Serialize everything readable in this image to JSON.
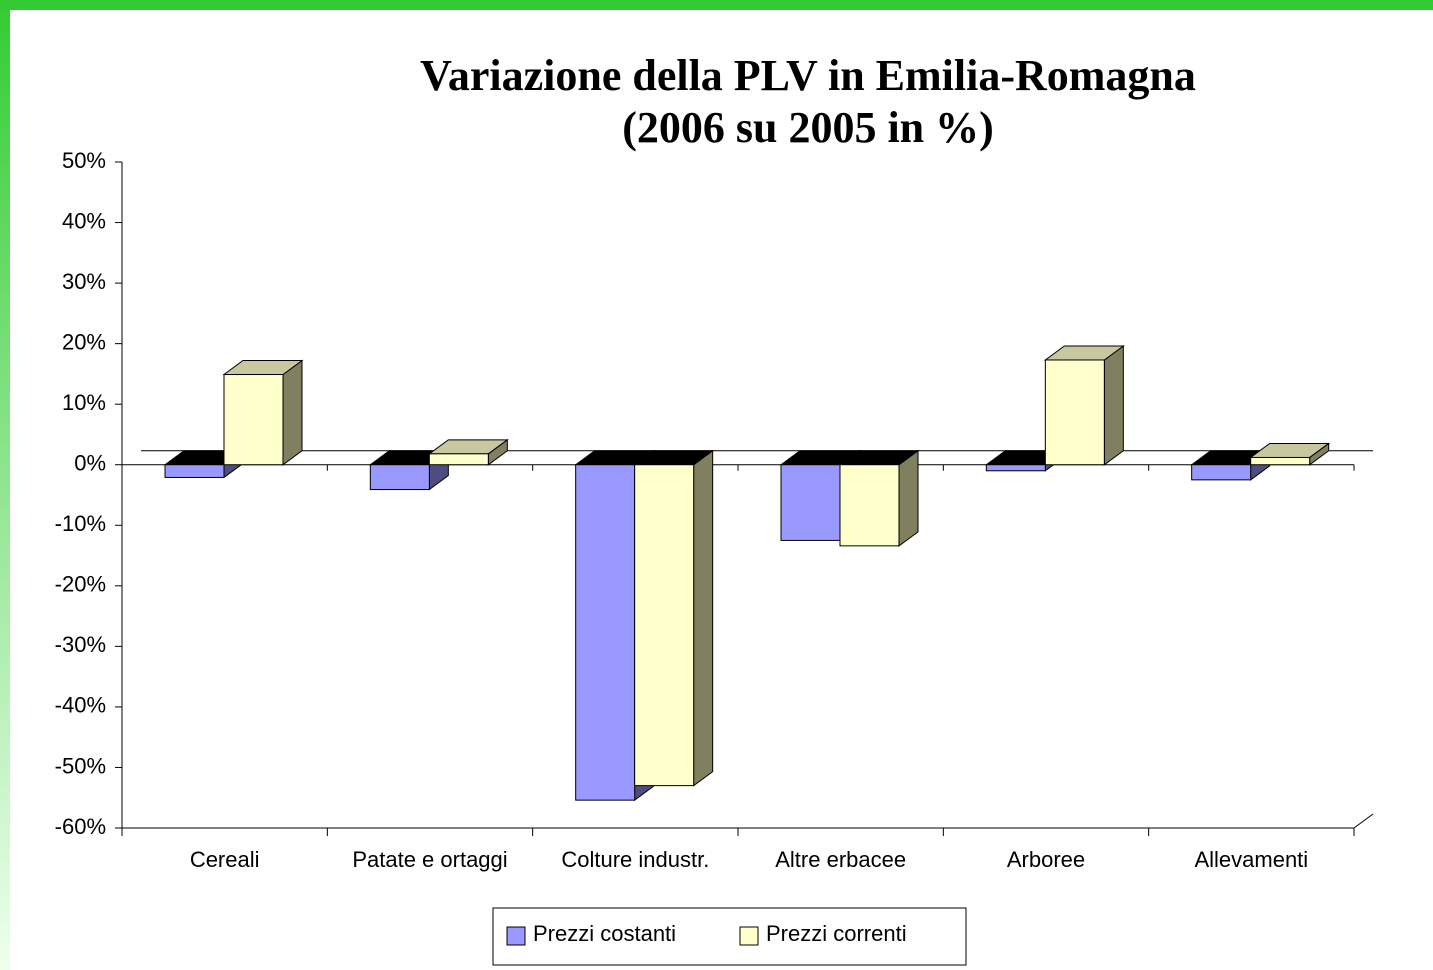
{
  "chart_data": {
    "type": "bar3d",
    "title": "Variazione della PLV in Emilia-Romagna",
    "subtitle": "(2006 su 2005 in %)",
    "categories": [
      "Cereali",
      "Patate e ortaggi",
      "Colture industr.",
      "Altre erbacee",
      "Arboree",
      "Allevamenti"
    ],
    "series": [
      {
        "name": "Prezzi costanti",
        "color": "#9999ff",
        "values": [
          -2.1,
          -4.1,
          -55.4,
          -12.5,
          -1.0,
          -2.5
        ]
      },
      {
        "name": "Prezzi correnti",
        "color": "#ffffcc",
        "values": [
          14.9,
          1.8,
          -53.0,
          -13.4,
          17.3,
          1.2
        ]
      }
    ],
    "ylim": [
      -60,
      50
    ],
    "yticks": [
      {
        "value": 50,
        "label": "50%"
      },
      {
        "value": 40,
        "label": "40%"
      },
      {
        "value": 30,
        "label": "30%"
      },
      {
        "value": 20,
        "label": "20%"
      },
      {
        "value": 10,
        "label": "10%"
      },
      {
        "value": 0,
        "label": "0%"
      },
      {
        "value": -10,
        "label": "-10%"
      },
      {
        "value": -20,
        "label": "-20%"
      },
      {
        "value": -30,
        "label": "-30%"
      },
      {
        "value": -40,
        "label": "-40%"
      },
      {
        "value": -50,
        "label": "-50%"
      },
      {
        "value": -60,
        "label": "-60%"
      }
    ]
  }
}
